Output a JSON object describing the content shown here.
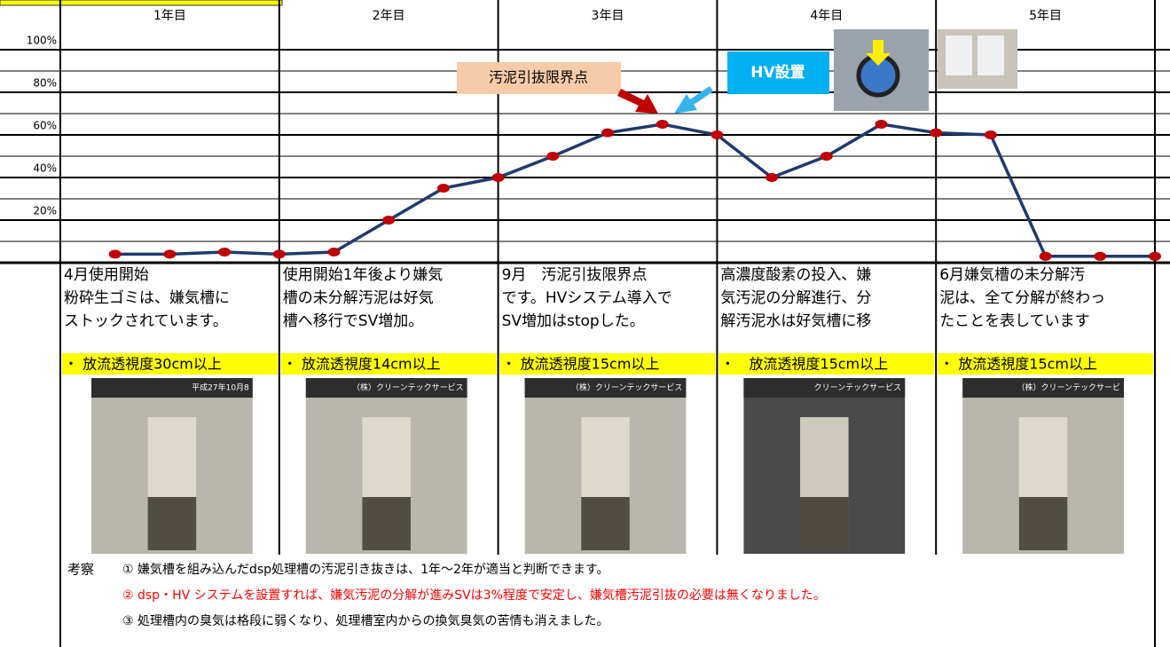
{
  "chart_data": {
    "type": "line",
    "categories": [
      "1年目",
      "2年目",
      "3年目",
      "4年目",
      "5年目"
    ],
    "x": [
      1,
      2,
      3,
      4,
      5,
      6,
      7,
      8,
      9,
      10,
      11,
      12,
      13,
      14,
      15,
      16,
      17,
      18,
      19,
      20
    ],
    "xlim": [
      0,
      20
    ],
    "series": [
      {
        "color": "#1f3a6e",
        "marker_color": "#c00000",
        "values": [
          4,
          4,
          5,
          4,
          5,
          20,
          35,
          40,
          50,
          61,
          65,
          60,
          40,
          50,
          65,
          61,
          60,
          3,
          3,
          3
        ]
      }
    ],
    "ylim": [
      0,
      100
    ],
    "yticks": [
      {
        "value": 20,
        "label": "20%"
      },
      {
        "value": 40,
        "label": "40%"
      },
      {
        "value": 60,
        "label": "60%"
      },
      {
        "value": 80,
        "label": "80%"
      },
      {
        "value": 100,
        "label": "100%"
      }
    ],
    "grid": true,
    "annotations": [
      "汚泥引抜限界点",
      "HV設置"
    ]
  },
  "columns": [
    {
      "text": [
        "4月使用開始",
        "粉砕生ゴミは、嫌気槽に",
        "ストックされています。"
      ],
      "highlight": "・ 放流透視度30cm以上",
      "photo_caption": "平成27年10月8"
    },
    {
      "text": [
        "使用開始1年後より嫌気",
        "槽の未分解汚泥は好気",
        "槽へ移行でSV増加。"
      ],
      "highlight": "・ 放流透視度14cm以上",
      "photo_caption": "（株）クリーンテックサービス"
    },
    {
      "text": [
        " 9月　汚泥引抜限界点",
        "です。HVシステム導入で",
        "SV増加はstopした。"
      ],
      "highlight": "・ 放流透視度15cm以上",
      "photo_caption": "（株）クリーンテックサービス"
    },
    {
      "text": [
        "高濃度酸素の投入、嫌",
        "気汚泥の分解進行、分",
        "解汚泥水は好気槽に移"
      ],
      "highlight": "・　放流透視度15cm以上",
      "photo_caption": "クリーンテックサービス"
    },
    {
      "text": [
        "6月嫌気槽の未分解汚",
        "泥は、全て分解が終わっ",
        "たことを表しています"
      ],
      "highlight": "・ 放流透視度15cm以上",
      "photo_caption": "（株）クリーンテックサービ"
    }
  ],
  "remarks": {
    "label": "考察",
    "items": [
      "① 嫌気槽を組み込んだdsp処理槽の汚泥引き抜きは、1年～2年が適当と判断できます。",
      "② dsp・HV システムを設置すれば、嫌気汚泥の分解が進みSVは3%程度で安定し、嫌気槽汚泥引抜の必要は無くなりました。",
      "③ 処理槽内の臭気は格段に弱くなり、処理槽室内からの換気臭気の苦情も消えました。"
    ]
  }
}
